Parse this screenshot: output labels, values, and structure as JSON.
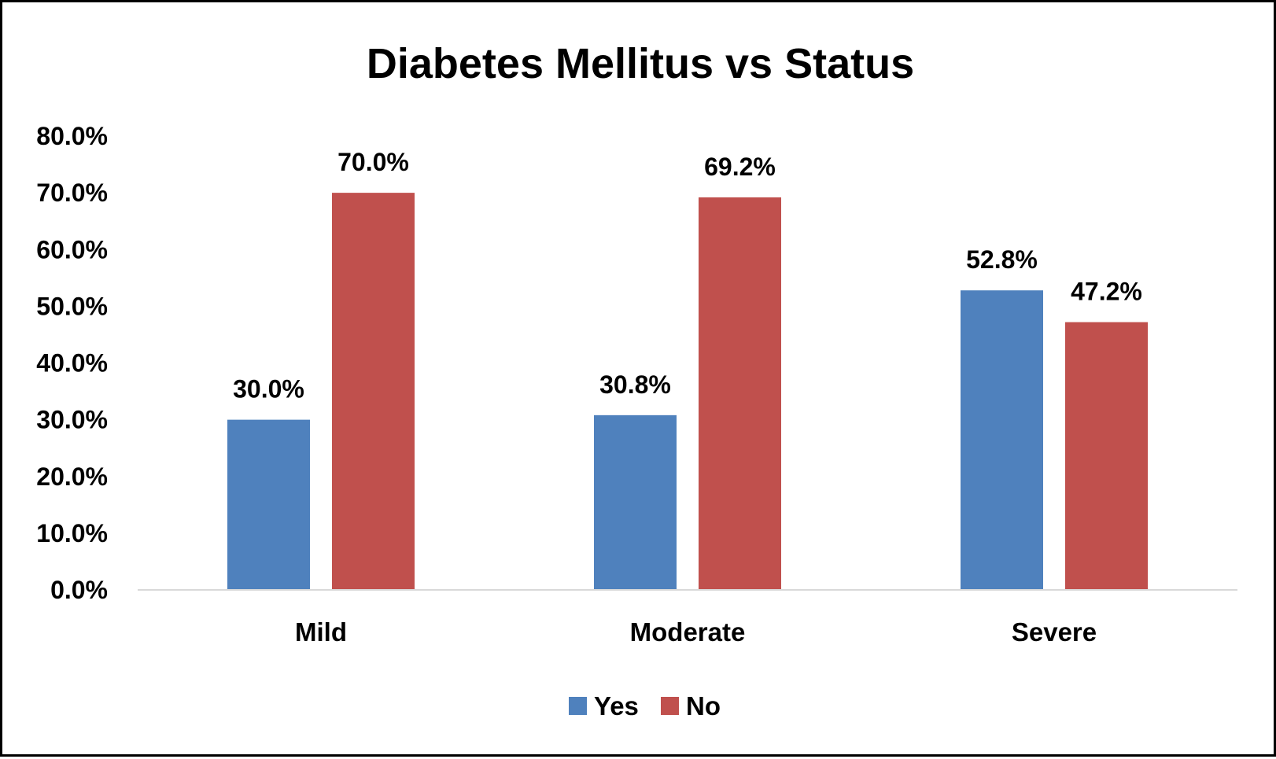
{
  "chart_data": {
    "type": "bar",
    "title": "Diabetes Mellitus vs Status",
    "categories": [
      "Mild",
      "Moderate",
      "Severe"
    ],
    "series": [
      {
        "name": "Yes",
        "color": "#4F81BD",
        "values": [
          30.0,
          30.8,
          52.8
        ],
        "labels": [
          "30.0%",
          "30.8%",
          "52.8%"
        ]
      },
      {
        "name": "No",
        "color": "#C0504D",
        "values": [
          70.0,
          69.2,
          47.2
        ],
        "labels": [
          "70.0%",
          "69.2%",
          "47.2%"
        ]
      }
    ],
    "yticks": [
      "0.0%",
      "10.0%",
      "20.0%",
      "30.0%",
      "40.0%",
      "50.0%",
      "60.0%",
      "70.0%",
      "80.0%"
    ],
    "ylim": [
      0,
      80
    ],
    "grid": false,
    "legend": "bottom-center"
  }
}
